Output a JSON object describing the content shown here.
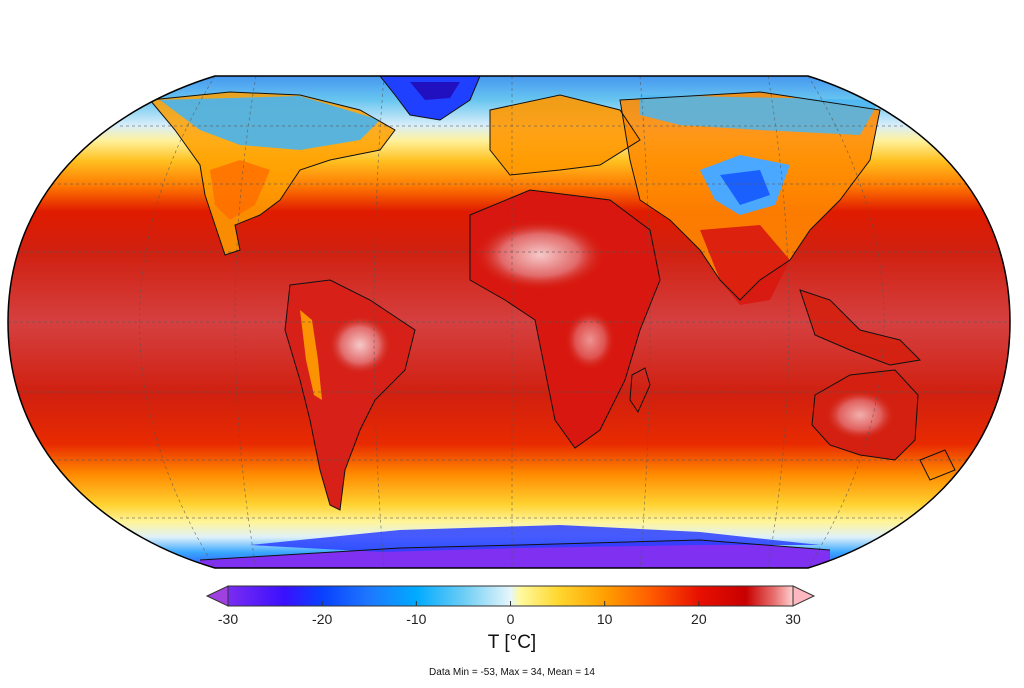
{
  "map": {
    "projection": "robinson",
    "variable": "temperature",
    "grid": true,
    "coastlines": true,
    "country_borders": true
  },
  "colorbar": {
    "title": "T [°C]",
    "min": -30,
    "max": 30,
    "extend": "both",
    "ticks": [
      {
        "value": -30,
        "label": "-30"
      },
      {
        "value": -20,
        "label": "-20"
      },
      {
        "value": -10,
        "label": "-10"
      },
      {
        "value": 0,
        "label": "0"
      },
      {
        "value": 10,
        "label": "10"
      },
      {
        "value": 20,
        "label": "20"
      },
      {
        "value": 30,
        "label": "30"
      }
    ],
    "stops": [
      {
        "value": -30,
        "color": "#7a2cf0"
      },
      {
        "value": -24,
        "color": "#3a10ff"
      },
      {
        "value": -20,
        "color": "#0a40ff"
      },
      {
        "value": -15,
        "color": "#1e78ff"
      },
      {
        "value": -10,
        "color": "#00aaff"
      },
      {
        "value": -5,
        "color": "#6ccdf5"
      },
      {
        "value": 0,
        "color": "#e6f6fb"
      },
      {
        "value": 1,
        "color": "#fff9a0"
      },
      {
        "value": 5,
        "color": "#ffd830"
      },
      {
        "value": 10,
        "color": "#ffa000"
      },
      {
        "value": 15,
        "color": "#ff5a00"
      },
      {
        "value": 20,
        "color": "#e81000"
      },
      {
        "value": 25,
        "color": "#c80000"
      },
      {
        "value": 28,
        "color": "#e87070"
      },
      {
        "value": 30,
        "color": "#ffd0d0"
      }
    ],
    "under_color": "#a040e0",
    "over_color": "#ffb8c0"
  },
  "stats": {
    "text": "Data Min = -53, Max = 34, Mean = 14"
  }
}
